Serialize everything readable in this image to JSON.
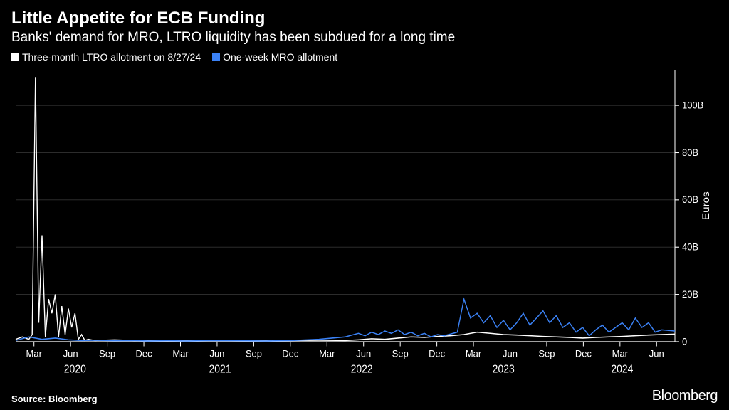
{
  "header": {
    "title": "Little Appetite for ECB Funding",
    "subtitle": "Banks' demand for MRO, LTRO liquidity has been subdued for a long time"
  },
  "legend": {
    "items": [
      {
        "label": "Three-month LTRO allotment on 8/27/24",
        "color": "#ffffff"
      },
      {
        "label": "One-week MRO allotment",
        "color": "#3b82f6"
      }
    ]
  },
  "chart": {
    "type": "line",
    "background_color": "#000000",
    "grid_color": "#333333",
    "axis_color": "#ffffff",
    "tick_label_color": "#ffffff",
    "tick_fontsize": 13,
    "line_width": 1.4,
    "y_axis": {
      "label": "Euros",
      "label_fontsize": 14,
      "side": "right",
      "min": 0,
      "max": 115,
      "ticks": [
        0,
        20,
        40,
        60,
        80,
        100
      ],
      "tick_labels": [
        "0",
        "20B",
        "40B",
        "60B",
        "80B",
        "100B"
      ]
    },
    "x_axis": {
      "ticks_months": [
        "Mar",
        "Jun",
        "Sep",
        "Dec",
        "Mar",
        "Jun",
        "Sep",
        "Dec",
        "Mar",
        "Jun",
        "Sep",
        "Dec",
        "Mar",
        "Jun",
        "Sep",
        "Dec",
        "Mar",
        "Jun"
      ],
      "year_labels": [
        {
          "label": "2020",
          "pos": 0.09
        },
        {
          "label": "2021",
          "pos": 0.31
        },
        {
          "label": "2022",
          "pos": 0.525
        },
        {
          "label": "2023",
          "pos": 0.74
        },
        {
          "label": "2024",
          "pos": 0.92
        }
      ]
    },
    "series": [
      {
        "name": "ltro",
        "color": "#ffffff",
        "points": [
          [
            0.0,
            1
          ],
          [
            0.01,
            2
          ],
          [
            0.02,
            1
          ],
          [
            0.025,
            3
          ],
          [
            0.03,
            112
          ],
          [
            0.035,
            8
          ],
          [
            0.04,
            45
          ],
          [
            0.045,
            2
          ],
          [
            0.05,
            18
          ],
          [
            0.055,
            12
          ],
          [
            0.06,
            20
          ],
          [
            0.065,
            2
          ],
          [
            0.07,
            15
          ],
          [
            0.075,
            3
          ],
          [
            0.08,
            14
          ],
          [
            0.085,
            6
          ],
          [
            0.09,
            12
          ],
          [
            0.095,
            1
          ],
          [
            0.1,
            3
          ],
          [
            0.105,
            0.5
          ],
          [
            0.11,
            1
          ],
          [
            0.12,
            0.5
          ],
          [
            0.15,
            0.8
          ],
          [
            0.18,
            0.5
          ],
          [
            0.2,
            0.6
          ],
          [
            0.23,
            0.4
          ],
          [
            0.26,
            0.5
          ],
          [
            0.3,
            0.6
          ],
          [
            0.34,
            0.5
          ],
          [
            0.38,
            0.4
          ],
          [
            0.42,
            0.5
          ],
          [
            0.46,
            0.6
          ],
          [
            0.5,
            0.5
          ],
          [
            0.52,
            0.8
          ],
          [
            0.54,
            1.2
          ],
          [
            0.56,
            1.0
          ],
          [
            0.58,
            1.5
          ],
          [
            0.6,
            2.0
          ],
          [
            0.62,
            1.8
          ],
          [
            0.64,
            2.2
          ],
          [
            0.66,
            2.5
          ],
          [
            0.68,
            3.0
          ],
          [
            0.7,
            4.0
          ],
          [
            0.72,
            3.5
          ],
          [
            0.74,
            3.0
          ],
          [
            0.76,
            2.8
          ],
          [
            0.78,
            2.5
          ],
          [
            0.8,
            2.2
          ],
          [
            0.82,
            2.0
          ],
          [
            0.84,
            1.8
          ],
          [
            0.86,
            1.5
          ],
          [
            0.88,
            1.8
          ],
          [
            0.9,
            2.0
          ],
          [
            0.92,
            2.2
          ],
          [
            0.94,
            2.5
          ],
          [
            0.96,
            2.8
          ],
          [
            0.98,
            3.0
          ],
          [
            1.0,
            3.2
          ]
        ]
      },
      {
        "name": "mro",
        "color": "#3b82f6",
        "points": [
          [
            0.0,
            0.5
          ],
          [
            0.02,
            2
          ],
          [
            0.04,
            1
          ],
          [
            0.06,
            1.5
          ],
          [
            0.08,
            0.8
          ],
          [
            0.1,
            0.5
          ],
          [
            0.12,
            0.6
          ],
          [
            0.15,
            0.4
          ],
          [
            0.18,
            0.5
          ],
          [
            0.2,
            0.3
          ],
          [
            0.23,
            0.4
          ],
          [
            0.26,
            0.3
          ],
          [
            0.3,
            0.5
          ],
          [
            0.34,
            0.4
          ],
          [
            0.38,
            0.3
          ],
          [
            0.42,
            0.5
          ],
          [
            0.46,
            1.0
          ],
          [
            0.48,
            1.5
          ],
          [
            0.5,
            2.0
          ],
          [
            0.52,
            3.5
          ],
          [
            0.53,
            2.5
          ],
          [
            0.54,
            4.0
          ],
          [
            0.55,
            3.0
          ],
          [
            0.56,
            4.5
          ],
          [
            0.57,
            3.5
          ],
          [
            0.58,
            5.0
          ],
          [
            0.59,
            3.0
          ],
          [
            0.6,
            4.0
          ],
          [
            0.61,
            2.5
          ],
          [
            0.62,
            3.5
          ],
          [
            0.63,
            2.0
          ],
          [
            0.64,
            3.0
          ],
          [
            0.65,
            2.5
          ],
          [
            0.67,
            4.0
          ],
          [
            0.68,
            18.0
          ],
          [
            0.69,
            10.0
          ],
          [
            0.7,
            12.0
          ],
          [
            0.71,
            8.0
          ],
          [
            0.72,
            11.0
          ],
          [
            0.73,
            6.0
          ],
          [
            0.74,
            9.0
          ],
          [
            0.75,
            5.0
          ],
          [
            0.76,
            8.0
          ],
          [
            0.77,
            12.0
          ],
          [
            0.78,
            7.0
          ],
          [
            0.79,
            10.0
          ],
          [
            0.8,
            13.0
          ],
          [
            0.81,
            8.0
          ],
          [
            0.82,
            11.0
          ],
          [
            0.83,
            6.0
          ],
          [
            0.84,
            8.0
          ],
          [
            0.85,
            4.0
          ],
          [
            0.86,
            6.0
          ],
          [
            0.87,
            2.5
          ],
          [
            0.88,
            5.0
          ],
          [
            0.89,
            7.0
          ],
          [
            0.9,
            4.0
          ],
          [
            0.91,
            6.0
          ],
          [
            0.92,
            8.0
          ],
          [
            0.93,
            5.0
          ],
          [
            0.94,
            10.0
          ],
          [
            0.95,
            6.0
          ],
          [
            0.96,
            8.0
          ],
          [
            0.97,
            4.0
          ],
          [
            0.98,
            5.0
          ],
          [
            1.0,
            4.5
          ]
        ]
      }
    ]
  },
  "footer": {
    "source": "Source: Bloomberg",
    "brand": "Bloomberg"
  }
}
